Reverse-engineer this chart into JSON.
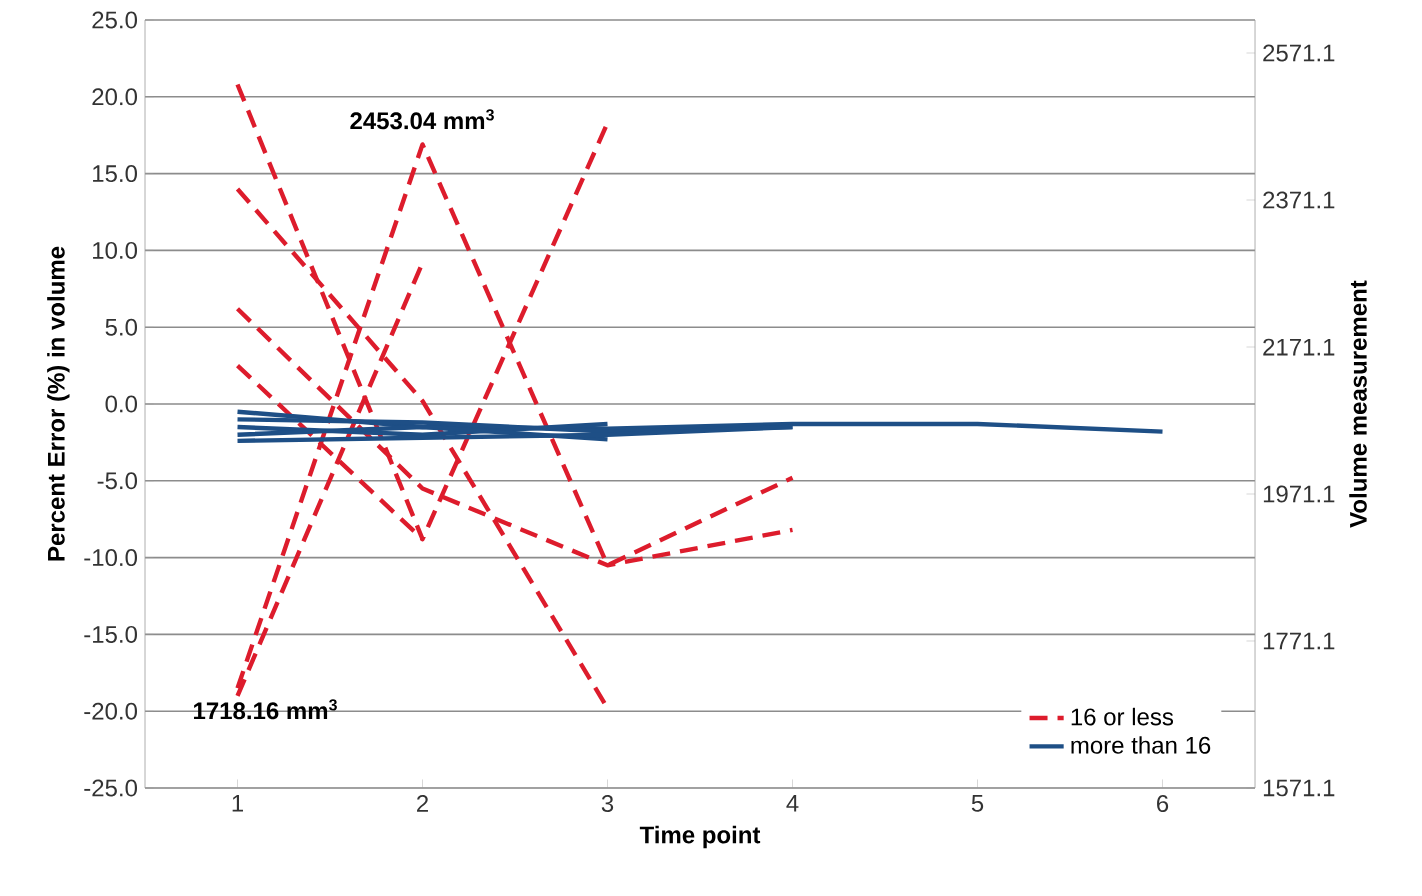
{
  "chart_data": {
    "type": "line",
    "xlabel": "Time point",
    "ylabel": "Percent Error (%) in volume",
    "y2label": "Volume measurement",
    "x": [
      1,
      2,
      3,
      4,
      5,
      6
    ],
    "xlim": [
      0.5,
      6.5
    ],
    "xticks": [
      1,
      2,
      3,
      4,
      5,
      6
    ],
    "ylim": [
      -25,
      25
    ],
    "yticks": [
      {
        "value": -25,
        "label": "-25.0"
      },
      {
        "value": -20,
        "label": "-20.0"
      },
      {
        "value": -15,
        "label": "-15.0"
      },
      {
        "value": -10,
        "label": "-10.0"
      },
      {
        "value": -5,
        "label": "-5.0"
      },
      {
        "value": 0,
        "label": "0.0"
      },
      {
        "value": 5,
        "label": "5.0"
      },
      {
        "value": 10,
        "label": "10.0"
      },
      {
        "value": 15,
        "label": "15.0"
      },
      {
        "value": 20,
        "label": "20.0"
      },
      {
        "value": 25,
        "label": "25.0"
      }
    ],
    "y2lim": [
      1571.1,
      2616.0
    ],
    "y2ticks": [
      1571.1,
      1771.1,
      1971.1,
      2171.1,
      2371.1,
      2571.1
    ],
    "grid": "y",
    "legend": "bottom right",
    "marker": "none",
    "series": [
      {
        "name": "16 or less",
        "color": "#dd1c2c",
        "line_style": "dashed",
        "values": [
          20.8,
          -8.8,
          18.3,
          null,
          null,
          null
        ]
      },
      {
        "color": "#dd1c2c",
        "line_style": "dashed",
        "values": [
          14.0,
          0.2,
          -19.8,
          null,
          null,
          null
        ]
      },
      {
        "color": "#dd1c2c",
        "line_style": "dashed",
        "values": [
          6.2,
          -5.5,
          -10.5,
          -8.2,
          null,
          null
        ]
      },
      {
        "color": "#dd1c2c",
        "line_style": "dashed",
        "values": [
          2.5,
          -8.8,
          null,
          null,
          null,
          null
        ]
      },
      {
        "color": "#dd1c2c",
        "line_style": "dashed",
        "values": [
          -18.5,
          16.9,
          -10.5,
          -4.8,
          null,
          null
        ]
      },
      {
        "color": "#dd1c2c",
        "line_style": "dashed",
        "values": [
          -19.0,
          9.2,
          null,
          null,
          null,
          null
        ]
      },
      {
        "name": "more than 16",
        "color": "#1e4f86",
        "line_style": "solid",
        "values": [
          -0.5,
          -1.5,
          -1.6,
          -1.3,
          -1.3,
          -1.8
        ]
      },
      {
        "color": "#1e4f86",
        "line_style": "solid",
        "values": [
          -1.0,
          -1.2,
          -1.8,
          -1.5,
          null,
          null
        ]
      },
      {
        "color": "#1e4f86",
        "line_style": "solid",
        "values": [
          -1.5,
          -2.0,
          -1.3,
          null,
          null,
          null
        ]
      },
      {
        "color": "#1e4f86",
        "line_style": "solid",
        "values": [
          -2.0,
          -1.5,
          -2.3,
          null,
          null,
          null
        ]
      },
      {
        "color": "#1e4f86",
        "line_style": "solid",
        "values": [
          -2.4,
          -2.2,
          -2.0,
          -1.5,
          null,
          null
        ]
      }
    ],
    "annotations": [
      {
        "text": "2453.04 mm$^{3}$",
        "x": 2,
        "y": 16.9
      },
      {
        "text": "1718.16 mm$^{3}$",
        "x": 1,
        "y": -18.5
      }
    ]
  }
}
